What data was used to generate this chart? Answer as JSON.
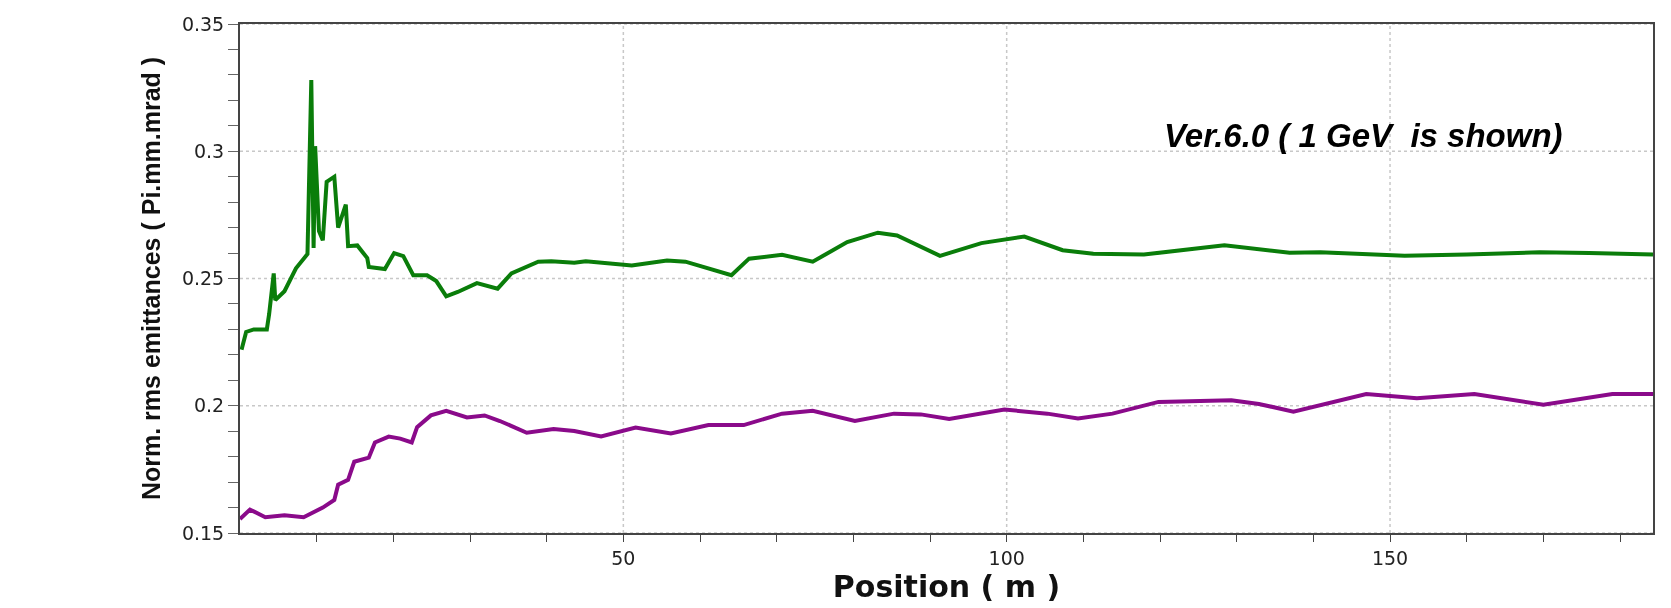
{
  "chart_data": {
    "type": "line",
    "xlabel": "Position ( m )",
    "ylabel": "Norm. rms emittances ( Pi.mm.mrad )",
    "annotations": [
      "Ver.6.0 ( 1 GeV  is shown)"
    ],
    "xlim": [
      0,
      184.3
    ],
    "ylim": [
      0.15,
      0.35
    ],
    "xticks": [
      {
        "value": 10,
        "label": null
      },
      {
        "value": 20,
        "label": null
      },
      {
        "value": 30,
        "label": null
      },
      {
        "value": 40,
        "label": null
      },
      50,
      {
        "value": 60,
        "label": null
      },
      {
        "value": 70,
        "label": null
      },
      {
        "value": 80,
        "label": null
      },
      {
        "value": 90,
        "label": null
      },
      100,
      {
        "value": 110,
        "label": null
      },
      {
        "value": 120,
        "label": null
      },
      {
        "value": 130,
        "label": null
      },
      {
        "value": 140,
        "label": null
      },
      150,
      {
        "value": 160,
        "label": null
      },
      {
        "value": 170,
        "label": null
      },
      {
        "value": 180,
        "label": null
      }
    ],
    "yticks": [
      0.15,
      {
        "value": 0.16,
        "label": null
      },
      {
        "value": 0.17,
        "label": null
      },
      {
        "value": 0.18,
        "label": null
      },
      {
        "value": 0.19,
        "label": null
      },
      0.2,
      {
        "value": 0.21,
        "label": null
      },
      {
        "value": 0.22,
        "label": null
      },
      {
        "value": 0.23,
        "label": null
      },
      {
        "value": 0.24,
        "label": null
      },
      0.25,
      {
        "value": 0.26,
        "label": null
      },
      {
        "value": 0.27,
        "label": null
      },
      {
        "value": 0.28,
        "label": null
      },
      {
        "value": 0.29,
        "label": null
      },
      0.3,
      {
        "value": 0.31,
        "label": null
      },
      {
        "value": 0.32,
        "label": null
      },
      {
        "value": 0.33,
        "label": null
      },
      {
        "value": 0.34,
        "label": null
      },
      0.35
    ],
    "grid": true,
    "line_style": "solid",
    "series": [
      {
        "color": "#0a7d0a",
        "x": [
          0.2,
          0.8,
          1.8,
          3.5,
          3.8,
          4.4,
          4.6,
          5.8,
          7.3,
          8.8,
          9.3,
          9.6,
          9.8,
          10.3,
          10.8,
          11.3,
          12.3,
          12.8,
          13.8,
          14.1,
          15.3,
          16.6,
          16.8,
          18.9,
          20.1,
          21.3,
          22.6,
          24.4,
          25.6,
          26.9,
          28.4,
          30.9,
          33.6,
          35.4,
          38.9,
          40.6,
          43.6,
          45.1,
          51.1,
          55.7,
          58.1,
          64.1,
          66.4,
          70.7,
          74.7,
          79.2,
          83.2,
          85.7,
          91.3,
          96.7,
          102.3,
          107.3,
          111.3,
          117.9,
          128.4,
          136.9,
          140.9,
          151.9,
          160,
          169.5,
          176,
          184.3
        ],
        "values": [
          0.222,
          0.229,
          0.23,
          0.23,
          0.236,
          0.252,
          0.2415,
          0.245,
          0.254,
          0.2596,
          0.328,
          0.262,
          0.302,
          0.2686,
          0.265,
          0.288,
          0.29,
          0.27,
          0.279,
          0.2627,
          0.263,
          0.258,
          0.2545,
          0.2537,
          0.26,
          0.2588,
          0.2513,
          0.2513,
          0.249,
          0.243,
          0.2447,
          0.2482,
          0.246,
          0.252,
          0.2566,
          0.2568,
          0.2562,
          0.2568,
          0.2551,
          0.2571,
          0.2566,
          0.2513,
          0.2578,
          0.2593,
          0.2566,
          0.2643,
          0.268,
          0.2669,
          0.2589,
          0.2639,
          0.2665,
          0.2611,
          0.2597,
          0.2594,
          0.2631,
          0.2601,
          0.2603,
          0.2589,
          0.2594,
          0.2603,
          0.26,
          0.2594
        ]
      },
      {
        "color": "#8a0a8a",
        "x": [
          0,
          1.3,
          3.3,
          5.8,
          8.3,
          10.8,
          12.3,
          12.8,
          14.1,
          14.9,
          16.8,
          17.6,
          19.4,
          20.9,
          22.4,
          23.1,
          24.9,
          26.9,
          29.6,
          31.9,
          33.9,
          37.4,
          40.9,
          43.6,
          47.1,
          51.6,
          56.2,
          61.1,
          65.7,
          70.7,
          74.7,
          80.2,
          85.3,
          88.8,
          92.5,
          99.7,
          105.3,
          109.3,
          113.8,
          119.8,
          129.3,
          132.9,
          137.4,
          146.9,
          153.5,
          161,
          170,
          179,
          184.3
        ],
        "values": [
          0.1555,
          0.1592,
          0.1562,
          0.157,
          0.1562,
          0.16,
          0.163,
          0.169,
          0.1709,
          0.178,
          0.1796,
          0.1856,
          0.1879,
          0.1871,
          0.1856,
          0.1916,
          0.1962,
          0.198,
          0.1954,
          0.1962,
          0.194,
          0.1894,
          0.1909,
          0.1901,
          0.1879,
          0.1914,
          0.1891,
          0.1924,
          0.1924,
          0.1969,
          0.198,
          0.194,
          0.1969,
          0.1966,
          0.1948,
          0.1985,
          0.1969,
          0.195,
          0.1969,
          0.2015,
          0.2022,
          0.2007,
          0.1977,
          0.2046,
          0.203,
          0.2046,
          0.2004,
          0.2046,
          0.2046
        ]
      }
    ]
  }
}
